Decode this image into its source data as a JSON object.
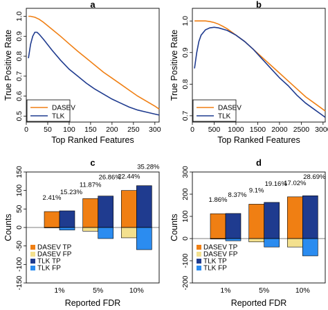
{
  "colors": {
    "dasev_tp": "#f07f13",
    "dasev_fp": "#f3e08e",
    "tlk_tp": "#1f3b8f",
    "tlk_fp": "#2b8cf0",
    "dasev_line": "#f07f13",
    "tlk_line": "#1f3b8f"
  },
  "chart_data": [
    {
      "panel": "a",
      "type": "line",
      "xlabel": "Top Ranked Features",
      "ylabel": "True Positive Rate",
      "xlim": [
        0,
        310
      ],
      "ylim": [
        0.47,
        1.04
      ],
      "xticks": [
        0,
        50,
        100,
        150,
        200,
        250,
        300
      ],
      "yticks": [
        0.5,
        0.6,
        0.7,
        0.8,
        0.9,
        1.0
      ],
      "legend_position": "bottom-left",
      "series": [
        {
          "name": "DASEV",
          "x": [
            5,
            10,
            20,
            30,
            40,
            60,
            80,
            100,
            120,
            140,
            160,
            180,
            200,
            220,
            240,
            260,
            280,
            300,
            310
          ],
          "y": [
            1.0,
            1.0,
            0.995,
            0.985,
            0.97,
            0.935,
            0.9,
            0.862,
            0.825,
            0.79,
            0.755,
            0.72,
            0.69,
            0.66,
            0.63,
            0.6,
            0.575,
            0.55,
            0.535
          ]
        },
        {
          "name": "TLK",
          "x": [
            5,
            10,
            15,
            20,
            25,
            30,
            40,
            60,
            80,
            100,
            120,
            140,
            160,
            180,
            200,
            220,
            240,
            260,
            280,
            300,
            310
          ],
          "y": [
            0.79,
            0.86,
            0.9,
            0.92,
            0.92,
            0.91,
            0.885,
            0.83,
            0.78,
            0.735,
            0.7,
            0.665,
            0.635,
            0.61,
            0.585,
            0.565,
            0.545,
            0.53,
            0.52,
            0.51,
            0.505
          ]
        }
      ]
    },
    {
      "panel": "b",
      "type": "line",
      "xlabel": "Top Ranked Features",
      "ylabel": "True Positive Rate",
      "xlim": [
        0,
        3050
      ],
      "ylim": [
        0.68,
        1.04
      ],
      "xticks": [
        0,
        500,
        1000,
        1500,
        2000,
        2500,
        3000
      ],
      "yticks": [
        0.7,
        0.8,
        0.9,
        1.0
      ],
      "legend_position": "bottom-left",
      "series": [
        {
          "name": "DASEV",
          "x": [
            50,
            100,
            200,
            300,
            400,
            500,
            600,
            700,
            800,
            1000,
            1200,
            1400,
            1600,
            1800,
            2000,
            2200,
            2400,
            2600,
            2800,
            3000,
            3050
          ],
          "y": [
            1.0,
            1.0,
            1.0,
            1.0,
            0.998,
            0.995,
            0.99,
            0.983,
            0.975,
            0.955,
            0.935,
            0.91,
            0.885,
            0.86,
            0.835,
            0.81,
            0.785,
            0.76,
            0.74,
            0.72,
            0.715
          ]
        },
        {
          "name": "TLK",
          "x": [
            50,
            100,
            150,
            200,
            300,
            400,
            500,
            600,
            800,
            1000,
            1200,
            1400,
            1600,
            1800,
            2000,
            2200,
            2400,
            2600,
            2800,
            3000,
            3050
          ],
          "y": [
            0.85,
            0.9,
            0.935,
            0.955,
            0.972,
            0.978,
            0.98,
            0.978,
            0.97,
            0.955,
            0.935,
            0.91,
            0.88,
            0.85,
            0.82,
            0.795,
            0.765,
            0.74,
            0.72,
            0.7,
            0.695
          ]
        }
      ]
    },
    {
      "panel": "c",
      "type": "bar",
      "xlabel": "Reported FDR",
      "ylabel": "Counts",
      "ylim": [
        -150,
        150
      ],
      "yticks": [
        -150,
        -100,
        -50,
        0,
        50,
        100,
        150
      ],
      "categories": [
        "1%",
        "5%",
        "10%"
      ],
      "legend_position": "bottom-left",
      "series": [
        {
          "name": "DASEV TP",
          "values": [
            43,
            78,
            100
          ]
        },
        {
          "name": "DASEV FP",
          "values": [
            -1,
            -10,
            -28
          ]
        },
        {
          "name": "TLK TP",
          "values": [
            45,
            85,
            113
          ]
        },
        {
          "name": "TLK FP",
          "values": [
            -7,
            -30,
            -60
          ]
        }
      ],
      "percent_labels": {
        "DASEV": [
          "2.41%",
          "11.87%",
          "22.44%"
        ],
        "TLK": [
          "15.23%",
          "26.86%",
          "35.28%"
        ]
      }
    },
    {
      "panel": "d",
      "type": "bar",
      "xlabel": "Reported FDR",
      "ylabel": "Counts",
      "ylim": [
        -200,
        300
      ],
      "yticks": [
        -200,
        -100,
        0,
        100,
        200,
        300
      ],
      "categories": [
        "1%",
        "5%",
        "10%"
      ],
      "legend_position": "bottom-left",
      "series": [
        {
          "name": "DASEV TP",
          "values": [
            112,
            155,
            188
          ]
        },
        {
          "name": "DASEV FP",
          "values": [
            -2,
            -15,
            -38
          ]
        },
        {
          "name": "TLK TP",
          "values": [
            113,
            163,
            193
          ]
        },
        {
          "name": "TLK FP",
          "values": [
            -10,
            -38,
            -78
          ]
        }
      ],
      "percent_labels": {
        "DASEV": [
          "1.86%",
          "9.1%",
          "17.02%"
        ],
        "TLK": [
          "8.37%",
          "19.16%",
          "28.69%"
        ]
      }
    }
  ]
}
